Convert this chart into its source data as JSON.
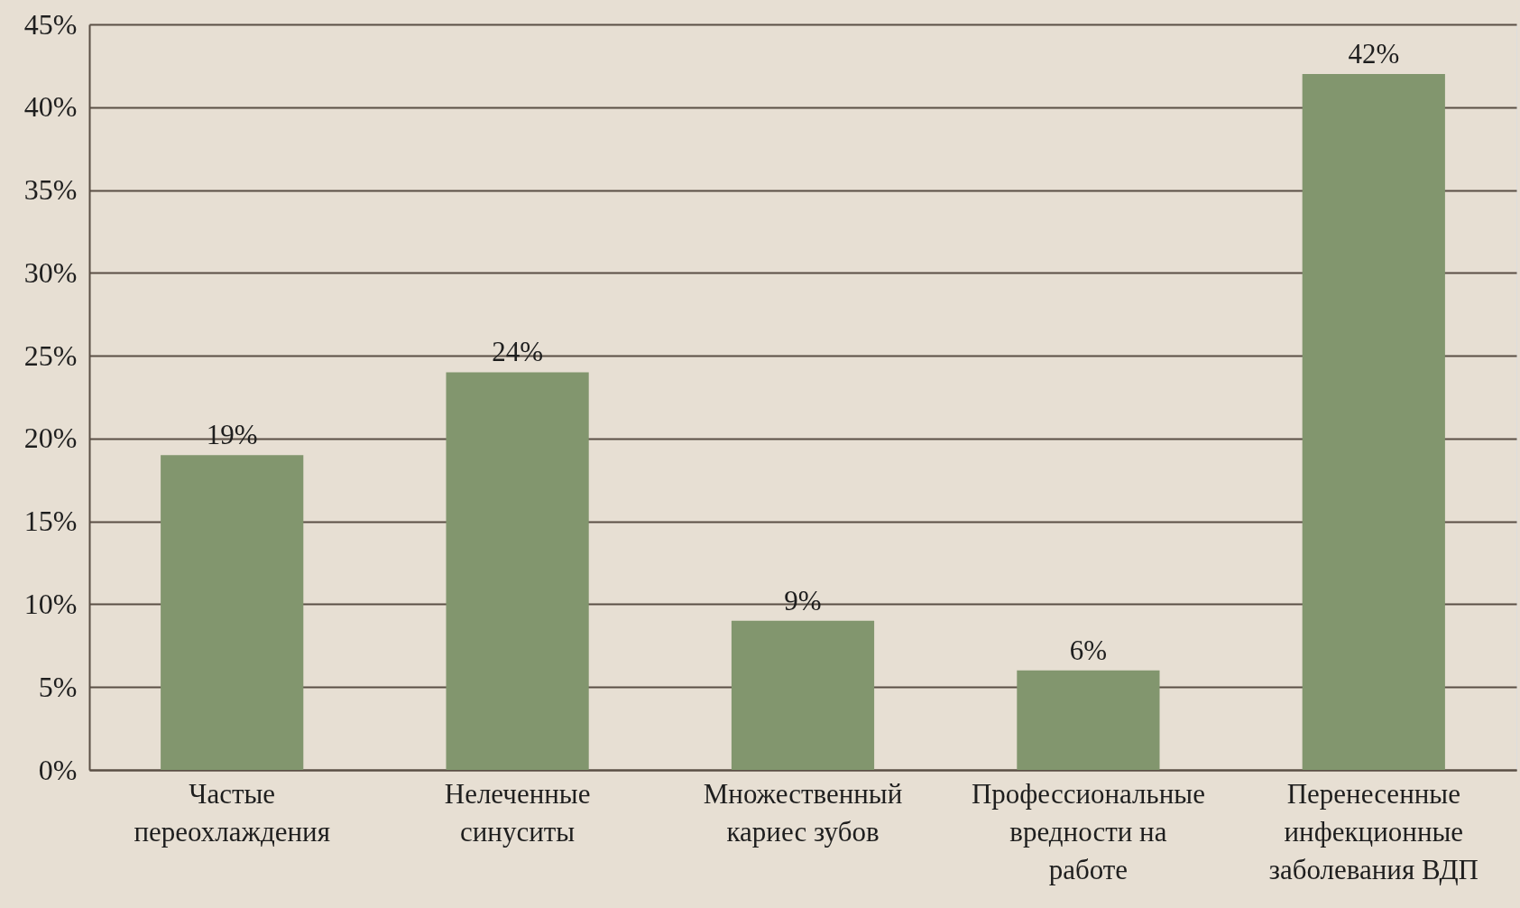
{
  "chart_data": {
    "type": "bar",
    "categories": [
      "Частые переохлаждения",
      "Нелеченные синуситы",
      "Множественный кариес зубов",
      "Профессиональные вредности на работе",
      "Перенесенные инфекционные заболевания ВДП"
    ],
    "values": [
      19,
      24,
      9,
      6,
      42
    ],
    "color": "#82966e",
    "value_labels": [
      "19%",
      "24%",
      "9%",
      "6%",
      "42%"
    ],
    "ylim": [
      0,
      45
    ],
    "yticks": [
      {
        "value": 0,
        "label": "0%"
      },
      {
        "value": 5,
        "label": "5%"
      },
      {
        "value": 10,
        "label": "10%"
      },
      {
        "value": 15,
        "label": "15%"
      },
      {
        "value": 20,
        "label": "20%"
      },
      {
        "value": 25,
        "label": "25%"
      },
      {
        "value": 30,
        "label": "30%"
      },
      {
        "value": 35,
        "label": "35%"
      },
      {
        "value": 40,
        "label": "40%"
      },
      {
        "value": 45,
        "label": "45%"
      }
    ],
    "grid": "y"
  }
}
